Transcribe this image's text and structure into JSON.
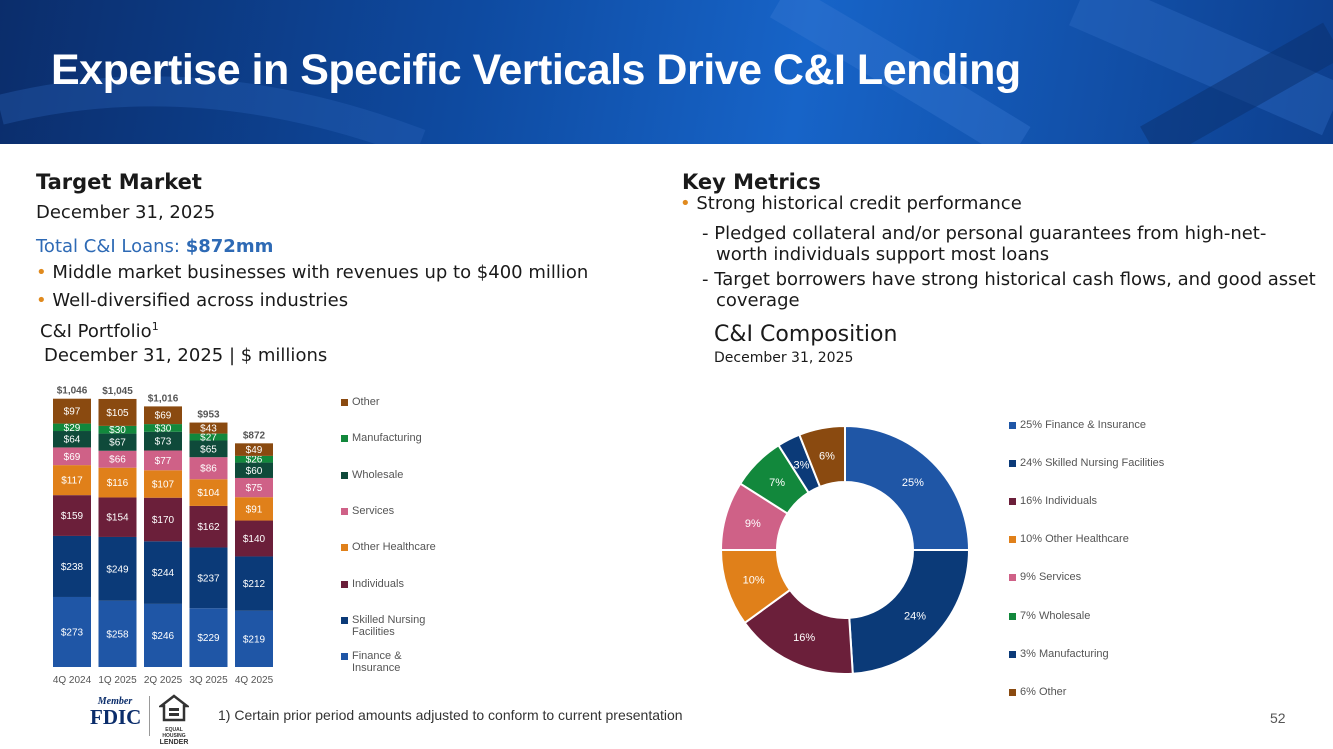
{
  "header": {
    "title": "Expertise in Specific Verticals Drive C&I Lending"
  },
  "left": {
    "heading": "Target Market",
    "date": "December 31, 2025",
    "total_label": "Total C&I Loans: ",
    "total_value": "$872mm",
    "bullets": [
      "Middle market businesses with revenues up to $400 million",
      "Well-diversified across industries"
    ],
    "chart_title": "C&I Portfolio",
    "chart_title_sup": "1",
    "chart_subtitle": "December 31, 2025 | $ millions"
  },
  "right": {
    "heading": "Key Metrics",
    "bullet": "Strong historical credit performance",
    "subs": [
      "- Pledged collateral and/or personal guarantees from high-net-worth individuals support most loans",
      "- Target borrowers have strong historical cash flows, and good asset coverage"
    ],
    "chart_title": "C&I Composition",
    "chart_subtitle": "December 31, 2025"
  },
  "chart_data": [
    {
      "type": "bar",
      "stacked": true,
      "categories": [
        "4Q 2024",
        "1Q 2025",
        "2Q 2025",
        "3Q 2025",
        "4Q 2025"
      ],
      "totals": [
        "$1,046",
        "$1,045",
        "$1,016",
        "$953",
        "$872"
      ],
      "series": [
        {
          "name": "Finance & Insurance",
          "color": "#1f56a6",
          "values": [
            273,
            258,
            246,
            229,
            219
          ]
        },
        {
          "name": "Skilled Nursing Facilities",
          "color": "#0b3a78",
          "values": [
            238,
            249,
            244,
            237,
            212
          ]
        },
        {
          "name": "Individuals",
          "color": "#6b1f3a",
          "values": [
            159,
            154,
            170,
            162,
            140
          ]
        },
        {
          "name": "Other Healthcare",
          "color": "#e0801a",
          "values": [
            117,
            116,
            107,
            104,
            91
          ]
        },
        {
          "name": "Services",
          "color": "#cf6187",
          "values": [
            69,
            66,
            77,
            86,
            75
          ]
        },
        {
          "name": "Wholesale",
          "color": "#0f4a3a",
          "values": [
            64,
            67,
            73,
            65,
            60
          ]
        },
        {
          "name": "Manufacturing",
          "color": "#12883c",
          "values": [
            29,
            30,
            30,
            27,
            26
          ]
        },
        {
          "name": "Other",
          "color": "#8a4a10",
          "values": [
            97,
            105,
            69,
            43,
            49
          ]
        }
      ],
      "ylim": [
        0,
        1100
      ]
    },
    {
      "type": "pie",
      "donut": true,
      "slices": [
        {
          "label": "25%",
          "legend": "25% Finance & Insurance",
          "value": 25,
          "color": "#1f56a6"
        },
        {
          "label": "24%",
          "legend": "24% Skilled Nursing Facilities",
          "value": 24,
          "color": "#0b3a78"
        },
        {
          "label": "16%",
          "legend": "16% Individuals",
          "value": 16,
          "color": "#6b1f3a"
        },
        {
          "label": "10%",
          "legend": "10% Other Healthcare",
          "value": 10,
          "color": "#e0801a"
        },
        {
          "label": "9%",
          "legend": "9% Services",
          "value": 9,
          "color": "#cf6187"
        },
        {
          "label": "7%",
          "legend": "7% Wholesale",
          "value": 7,
          "color": "#12883c"
        },
        {
          "label": "3%",
          "legend": "3% Manufacturing",
          "value": 3,
          "color": "#0b3a78"
        },
        {
          "label": "6%",
          "legend": "6% Other",
          "value": 6,
          "color": "#8a4a10"
        }
      ]
    }
  ],
  "footer": {
    "footnote": "1) Certain prior period amounts adjusted to conform to current presentation",
    "page_number": "52",
    "fdic_member": "Member",
    "fdic": "FDIC",
    "ehl_line1": "EQUAL HOUSING",
    "ehl_line2": "LENDER"
  }
}
